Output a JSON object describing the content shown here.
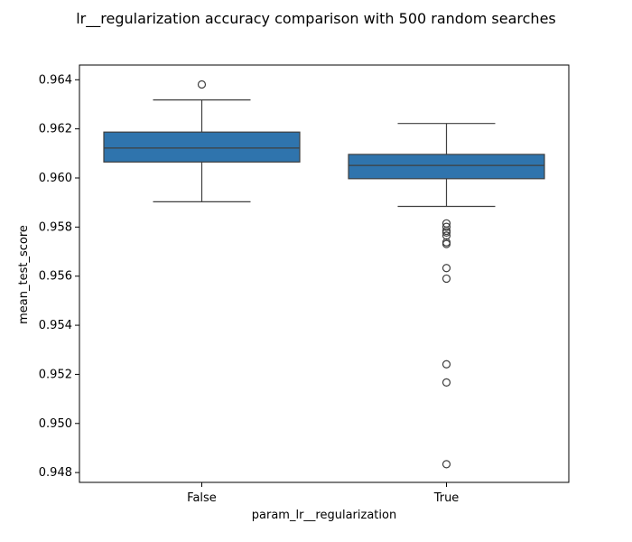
{
  "chart_data": {
    "type": "box",
    "title": "lr__regularization accuracy comparison with 500 random searches",
    "xlabel": "param_lr__regularization",
    "ylabel": "mean_test_score",
    "categories": [
      "False",
      "True"
    ],
    "ylim": [
      0.9476,
      0.9646
    ],
    "yticks": [
      0.948,
      0.95,
      0.952,
      0.954,
      0.956,
      0.958,
      0.96,
      0.962,
      0.964
    ],
    "ytick_labels": [
      "0.948",
      "0.950",
      "0.952",
      "0.954",
      "0.956",
      "0.958",
      "0.960",
      "0.962",
      "0.964"
    ],
    "grid": false,
    "box_color": "#2f74ad",
    "edge_color": "#3f3f3f",
    "boxes": [
      {
        "category": "False",
        "whisker_low": 0.95903,
        "q1": 0.96065,
        "median": 0.96122,
        "q3": 0.96187,
        "whisker_high": 0.96318,
        "outliers": [
          0.96381
        ]
      },
      {
        "category": "True",
        "whisker_low": 0.95884,
        "q1": 0.95997,
        "median": 0.96051,
        "q3": 0.96096,
        "whisker_high": 0.96222,
        "outliers": [
          0.95815,
          0.95801,
          0.95785,
          0.95778,
          0.95765,
          0.95738,
          0.95731,
          0.95633,
          0.9559,
          0.95241,
          0.95167,
          0.94834
        ]
      }
    ]
  }
}
